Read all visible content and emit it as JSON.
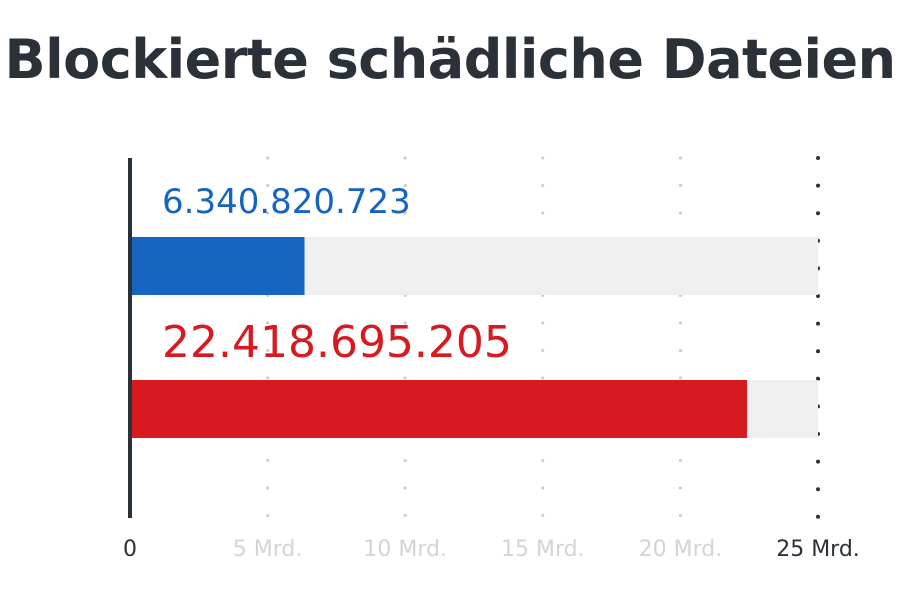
{
  "chart_data": {
    "type": "bar",
    "orientation": "horizontal",
    "title": "Blockierte schädliche Dateien",
    "series": [
      {
        "value": 6340820723,
        "label": "6.340.820.723",
        "color": "#1565c0"
      },
      {
        "value": 22418695205,
        "label": "22.418.695.205",
        "color": "#d71920"
      }
    ],
    "xlim": [
      0,
      25000000000
    ],
    "ticks": [
      {
        "value": 0,
        "label": "0",
        "color": "#2a3138"
      },
      {
        "value": 5000000000,
        "label": "5 Mrd.",
        "color": "#d4d4d4"
      },
      {
        "value": 10000000000,
        "label": "10 Mrd.",
        "color": "#d4d4d4"
      },
      {
        "value": 15000000000,
        "label": "15 Mrd.",
        "color": "#d4d4d4"
      },
      {
        "value": 20000000000,
        "label": "20 Mrd.",
        "color": "#d4d4d4"
      },
      {
        "value": 25000000000,
        "label": "25 Mrd.",
        "color": "#2a3138"
      }
    ],
    "track_color": "#efefef",
    "grid": true,
    "grid_style": "dotted"
  }
}
